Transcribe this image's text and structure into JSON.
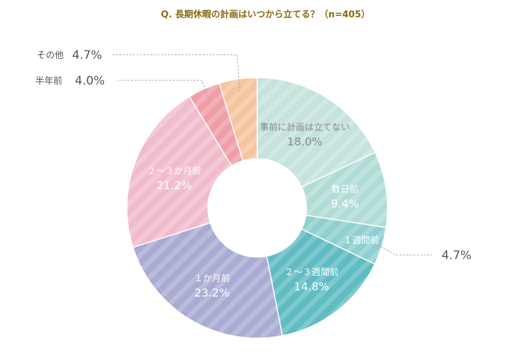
{
  "chart_data": {
    "type": "pie",
    "title": "Q. 長期休暇の計画はいつから立てる？（n=405）",
    "categories": [
      "事前に計画は立てない",
      "数日前",
      "１週間前",
      "２～３週間前",
      "１か月前",
      "２～３か月前",
      "半年前",
      "その他"
    ],
    "values": [
      18.0,
      9.4,
      4.7,
      14.8,
      23.2,
      21.2,
      4.0,
      4.7
    ],
    "value_labels": [
      "18.0%",
      "9.4%",
      "4.7%",
      "14.8%",
      "23.2%",
      "21.2%",
      "4.0%",
      "4.7%"
    ],
    "colors": [
      "#c5e3dc",
      "#b0dcd6",
      "#8fcfd0",
      "#5fbcc2",
      "#a9abd2",
      "#f0bccb",
      "#ef9ea7",
      "#f6c49e"
    ],
    "legend": "none",
    "donut": true
  }
}
